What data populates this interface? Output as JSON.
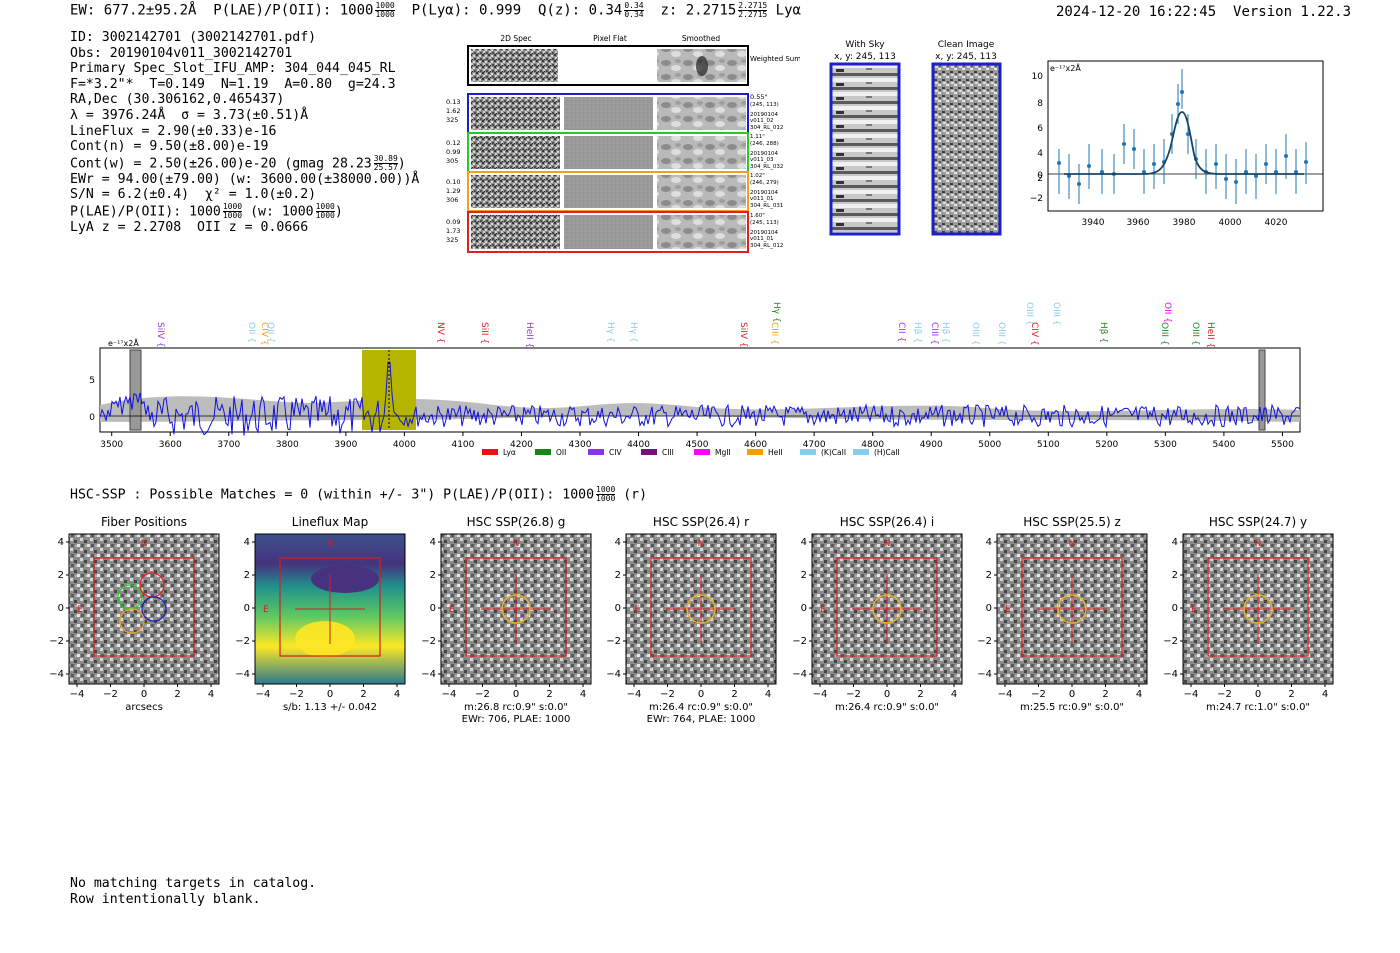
{
  "header": {
    "left_line": [
      "EW: 677.2±95.2Å",
      "P(LAE)/P(OII): 1000",
      "P(Lyα): 0.999",
      "Q(z): 0.34",
      "z: 2.2715",
      "Lyα"
    ],
    "plae_frac": [
      "1000",
      "1000"
    ],
    "qz_frac": [
      "0.34",
      "0.34"
    ],
    "z_frac": [
      "2.2715",
      "2.2715"
    ],
    "timestamp": "2024-12-20 16:22:45",
    "version": "Version 1.22.3"
  },
  "info": {
    "id": "ID: 3002142701 (3002142701.pdf)",
    "obs": "Obs: 20190104v011_3002142701",
    "primary": "Primary Spec_Slot_IFU_AMP: 304_044_045_RL",
    "fiber": "F=*3.2\"*  T=0.149  N=1.19  A=0.80  g=24.3",
    "radec": "RA,Dec (30.306162,0.465437)",
    "lambda": "λ = 3976.24Å  σ = 3.73(±0.51)Å",
    "lineflux": "LineFlux = 2.90(±0.33)e-16",
    "contn": "Cont(n) = 9.50(±8.00)e-19",
    "contw": "Cont(w) = 2.50(±26.00)e-20 (gmag 28.23",
    "contw_frac": [
      "30.89",
      "25.57"
    ],
    "ewr": "EWr = 94.00(±79.00) (w: 3600.00(±38000.00))Å",
    "sn": "S/N = 6.2(±0.4)  χ² = 1.0(±0.2)",
    "plae": "P(LAE)/P(OII): 1000",
    "plae_frac": [
      "1000",
      "1000"
    ],
    "plae_w": "(w: 1000",
    "plae_w_frac": [
      "1000",
      "1000"
    ],
    "lya_z": "LyA z = 2.2708  OII z = 0.0666"
  },
  "cutouts": {
    "col_titles": [
      "2D Spec",
      "Pixel Flat",
      "Smoothed"
    ],
    "weighted_label": "Weighted Sum",
    "rows": [
      {
        "left": [
          "0.13",
          "1.62",
          "325"
        ],
        "right": [
          "0.55\"",
          "(245, 113)",
          "20190104",
          "v011_02",
          "304_RL_012"
        ],
        "color": "#1f1fc8"
      },
      {
        "left": [
          "0.12",
          "0.99",
          "305"
        ],
        "right": [
          "1.11\"",
          "(246, 288)",
          "20190104",
          "v011_03",
          "304_RL_032"
        ],
        "color": "#22cc22"
      },
      {
        "left": [
          "0.10",
          "1.29",
          "306"
        ],
        "right": [
          "1.02\"",
          "(246, 279)",
          "20190104",
          "v011_01",
          "304_RL_031"
        ],
        "color": "#f0a020"
      },
      {
        "left": [
          "0.09",
          "1.73",
          "325"
        ],
        "right": [
          "1.60\"",
          "(245, 113)",
          "20190104",
          "v011_01",
          "304_RL_012"
        ],
        "color": "#e02020"
      }
    ]
  },
  "sky": {
    "title1": "With Sky",
    "sub1": "x, y: 245, 113",
    "title2": "Clean Image",
    "sub2": "x, y: 245, 113"
  },
  "zoom_plot": {
    "unit_label": "e⁻¹⁷x2Å",
    "xticks": [
      "3940",
      "3960",
      "3980",
      "4000",
      "4020"
    ],
    "yticks": [
      "10",
      "8",
      "6",
      "4",
      "2",
      "0",
      "−2"
    ]
  },
  "spectrum": {
    "unit_label": "e⁻¹⁷x2Å",
    "yticks": [
      "5",
      "0"
    ],
    "xticks": [
      "3500",
      "3600",
      "3700",
      "3800",
      "3900",
      "4000",
      "4100",
      "4200",
      "4300",
      "4400",
      "4500",
      "4600",
      "4700",
      "4800",
      "4900",
      "5000",
      "5100",
      "5200",
      "5300",
      "5400",
      "5500"
    ],
    "lines": [
      {
        "name": "SiIV",
        "color": "#9933ff"
      },
      {
        "name": "OII",
        "color": "#87ceeb"
      },
      {
        "name": "CIV",
        "color": "#f0a020"
      },
      {
        "name": "OII",
        "color": "#87ceeb"
      },
      {
        "name": "NV",
        "color": "#e02020"
      },
      {
        "name": "SiII",
        "color": "#e02020"
      },
      {
        "name": "HeII",
        "color": "#9933ff"
      },
      {
        "name": "Hγ",
        "color": "#87ceeb"
      },
      {
        "name": "Hγ",
        "color": "#87ceeb"
      },
      {
        "name": "SiIV",
        "color": "#e02020"
      },
      {
        "name": "CIII",
        "color": "#f0a020"
      },
      {
        "name": "Hγ",
        "color": "#228b22"
      },
      {
        "name": "CII",
        "color": "#9933ff"
      },
      {
        "name": "Hβ",
        "color": "#87ceeb"
      },
      {
        "name": "CIII",
        "color": "#9933ff"
      },
      {
        "name": "Hβ",
        "color": "#87ceeb"
      },
      {
        "name": "OIII",
        "color": "#87ceeb"
      },
      {
        "name": "OIII",
        "color": "#87ceeb"
      },
      {
        "name": "OIII",
        "color": "#87ceeb"
      },
      {
        "name": "CIV",
        "color": "#e02020"
      },
      {
        "name": "OIII",
        "color": "#87ceeb"
      },
      {
        "name": "Hβ",
        "color": "#228b22"
      },
      {
        "name": "OII",
        "color": "#ff00ff"
      },
      {
        "name": "OIII",
        "color": "#228b22"
      },
      {
        "name": "OIII",
        "color": "#228b22"
      },
      {
        "name": "HeII",
        "color": "#e02020"
      }
    ],
    "legend": [
      {
        "name": "Lyα",
        "color": "#ee1111"
      },
      {
        "name": "OII",
        "color": "#118811"
      },
      {
        "name": "CIV",
        "color": "#8833ee"
      },
      {
        "name": "CIII",
        "color": "#771177"
      },
      {
        "name": "MgII",
        "color": "#ff00ff"
      },
      {
        "name": "HeII",
        "color": "#f5a000"
      },
      {
        "name": "(K)CaII",
        "color": "#87ceeb"
      },
      {
        "name": "(H)CaII",
        "color": "#87ceeb"
      }
    ]
  },
  "hsc": {
    "title": "HSC-SSP : Possible Matches = 0 (within +/- 3\")  P(LAE)/P(OII): 1000",
    "title_frac": [
      "1000",
      "1000"
    ],
    "title_suffix": "(r)",
    "ticks": [
      "4",
      "2",
      "0",
      "−2",
      "−4"
    ],
    "xticks": [
      "−4",
      "−2",
      "0",
      "2",
      "4"
    ],
    "compass_n": "N",
    "compass_e": "E",
    "panels": [
      {
        "title": "Fiber Positions",
        "cap1": "arcsecs",
        "cap2": ""
      },
      {
        "title": "Lineflux Map",
        "cap1": "s/b: 1.13 +/- 0.042",
        "cap2": ""
      },
      {
        "title": "HSC SSP(26.8) g",
        "cap1": "m:26.8 rc:0.9\"  s:0.0\"",
        "cap2": "EWr: 706, PLAE: 1000"
      },
      {
        "title": "HSC SSP(26.4) r",
        "cap1": "m:26.4 rc:0.9\"  s:0.0\"",
        "cap2": "EWr: 764, PLAE: 1000"
      },
      {
        "title": "HSC SSP(26.4) i",
        "cap1": "m:26.4 rc:0.9\"  s:0.0\"",
        "cap2": ""
      },
      {
        "title": "HSC SSP(25.5) z",
        "cap1": "m:25.5 rc:0.9\"  s:0.0\"",
        "cap2": ""
      },
      {
        "title": "HSC SSP(24.7) y",
        "cap1": "m:24.7 rc:1.0\"  s:0.0\"",
        "cap2": ""
      }
    ]
  },
  "footer": {
    "line1": "No matching targets in catalog.",
    "line2": "Row intentionally blank."
  }
}
